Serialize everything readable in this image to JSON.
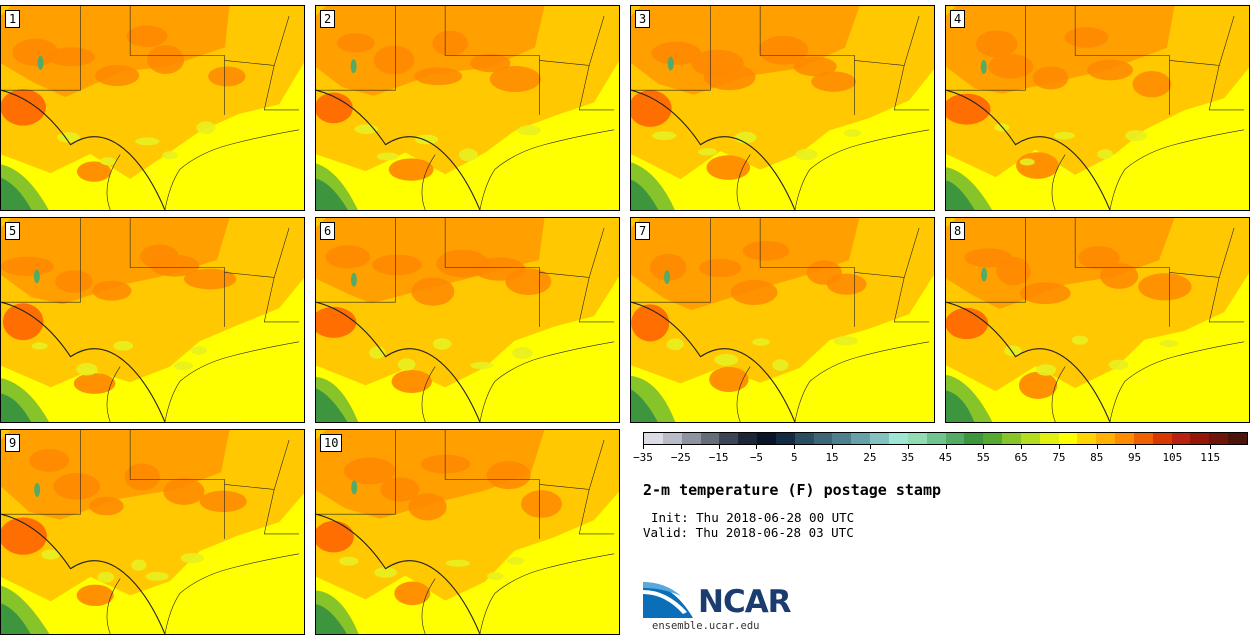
{
  "map_title": "2-m temperature (F) postage stamp",
  "init_line": "Init: Thu 2018-06-28 00 UTC",
  "valid_line": "Valid: Thu 2018-06-28 03 UTC",
  "logo": {
    "name": "NCAR",
    "url": "ensemble.ucar.edu"
  },
  "panels": [
    {
      "label": "1",
      "variant": 0
    },
    {
      "label": "2",
      "variant": 1
    },
    {
      "label": "3",
      "variant": 2
    },
    {
      "label": "4",
      "variant": 3
    },
    {
      "label": "5",
      "variant": 4
    },
    {
      "label": "6",
      "variant": 5
    },
    {
      "label": "7",
      "variant": 6
    },
    {
      "label": "8",
      "variant": 7
    },
    {
      "label": "9",
      "variant": 8
    },
    {
      "label": "10",
      "variant": 9
    }
  ],
  "colorbar": {
    "min": -35,
    "max": 125,
    "step": 5,
    "colors": [
      "#dcdce6",
      "#b9bcc6",
      "#8e949f",
      "#656c7a",
      "#3b4556",
      "#1c2638",
      "#0a1428",
      "#132a40",
      "#2a4c62",
      "#3e6478",
      "#4f7f8f",
      "#67a0a8",
      "#83c2c0",
      "#9de6d6",
      "#91dcb0",
      "#6ec48c",
      "#55aa66",
      "#3d963e",
      "#55a830",
      "#86c42a",
      "#b4dc1e",
      "#e1f010",
      "#ffff00",
      "#ffd400",
      "#ffb000",
      "#ff8c00",
      "#f06000",
      "#d83800",
      "#b82010",
      "#951608",
      "#6e1408",
      "#4a1408"
    ],
    "tick_labels": [
      "-35",
      "-25",
      "-15",
      "-5",
      "5",
      "15",
      "25",
      "35",
      "45",
      "55",
      "65",
      "75",
      "85",
      "95",
      "105",
      "115"
    ]
  }
}
